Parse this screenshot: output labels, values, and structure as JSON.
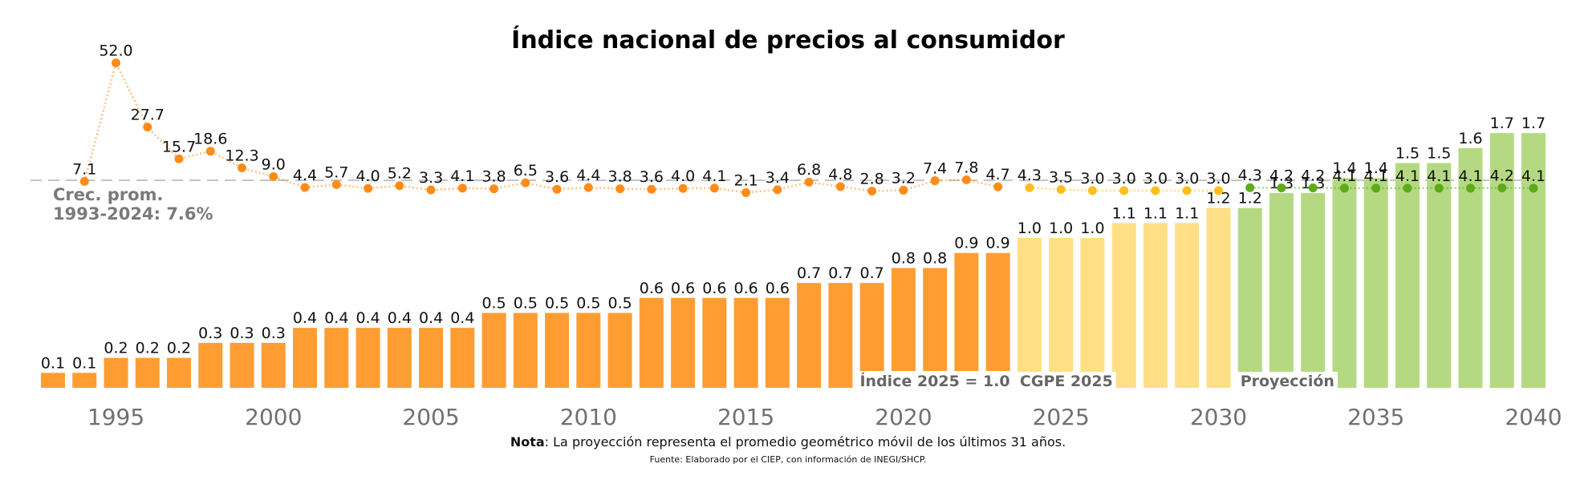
{
  "chart_data": {
    "type": "bar",
    "title": "Índice nacional de precios al consumidor",
    "xlim": [
      1993,
      2040
    ],
    "x_ticks": [
      1995,
      2000,
      2005,
      2010,
      2015,
      2020,
      2025,
      2030,
      2035,
      2040
    ],
    "x": [
      1993,
      1994,
      1995,
      1996,
      1997,
      1998,
      1999,
      2000,
      2001,
      2002,
      2003,
      2004,
      2005,
      2006,
      2007,
      2008,
      2009,
      2010,
      2011,
      2012,
      2013,
      2014,
      2015,
      2016,
      2017,
      2018,
      2019,
      2020,
      2021,
      2022,
      2023,
      2024,
      2025,
      2026,
      2027,
      2028,
      2029,
      2030,
      2031,
      2032,
      2033,
      2034,
      2035,
      2036,
      2037,
      2038,
      2039,
      2040
    ],
    "bar_values": [
      0.1,
      0.1,
      0.2,
      0.2,
      0.2,
      0.3,
      0.3,
      0.3,
      0.4,
      0.4,
      0.4,
      0.4,
      0.4,
      0.4,
      0.5,
      0.5,
      0.5,
      0.5,
      0.5,
      0.6,
      0.6,
      0.6,
      0.6,
      0.6,
      0.7,
      0.7,
      0.7,
      0.8,
      0.8,
      0.9,
      0.9,
      1.0,
      1.0,
      1.0,
      1.1,
      1.1,
      1.1,
      1.2,
      1.2,
      1.3,
      1.3,
      1.4,
      1.4,
      1.5,
      1.5,
      1.6,
      1.7,
      1.7
    ],
    "growth_x": [
      1994,
      1995,
      1996,
      1997,
      1998,
      1999,
      2000,
      2001,
      2002,
      2003,
      2004,
      2005,
      2006,
      2007,
      2008,
      2009,
      2010,
      2011,
      2012,
      2013,
      2014,
      2015,
      2016,
      2017,
      2018,
      2019,
      2020,
      2021,
      2022,
      2023,
      2024,
      2025,
      2026,
      2027,
      2028,
      2029,
      2030,
      2031,
      2032,
      2033,
      2034,
      2035,
      2036,
      2037,
      2038,
      2039,
      2040
    ],
    "growth_values": [
      7.1,
      52.0,
      27.7,
      15.7,
      18.6,
      12.3,
      9.0,
      4.4,
      5.7,
      4.0,
      5.2,
      3.3,
      4.1,
      3.8,
      6.5,
      3.6,
      4.4,
      3.8,
      3.6,
      4.0,
      4.1,
      2.1,
      3.4,
      6.8,
      4.8,
      2.8,
      3.2,
      7.4,
      7.8,
      4.7,
      4.3,
      3.5,
      3.0,
      3.0,
      3.0,
      3.0,
      3.0,
      4.3,
      4.2,
      4.2,
      4.1,
      4.1,
      4.1,
      4.1,
      4.1,
      4.2,
      4.1
    ],
    "average_growth": 7.6,
    "average_label_line1": "Crec. prom.",
    "average_label_line2": "1993-2024: 7.6%",
    "segments": [
      {
        "label": "Índice 2025 = 1.0",
        "from": 1993,
        "to": 2023,
        "bar_color": "#ff9d33",
        "dot_color": "#ff8c1a"
      },
      {
        "label": "CGPE 2025",
        "from": 2024,
        "to": 2030,
        "bar_color": "#ffdf85",
        "dot_color": "#ffbe1a"
      },
      {
        "label": "Proyección",
        "from": 2031,
        "to": 2040,
        "bar_color": "#b5d982",
        "dot_color": "#5cab1a"
      }
    ],
    "grid": false,
    "note_bold": "Nota",
    "note_text": ": La proyección representa el promedio geométrico móvil de los últimos 31 años.",
    "source": "Fuente: Elaborado por el CIEP, con información de INEGI/SHCP."
  }
}
